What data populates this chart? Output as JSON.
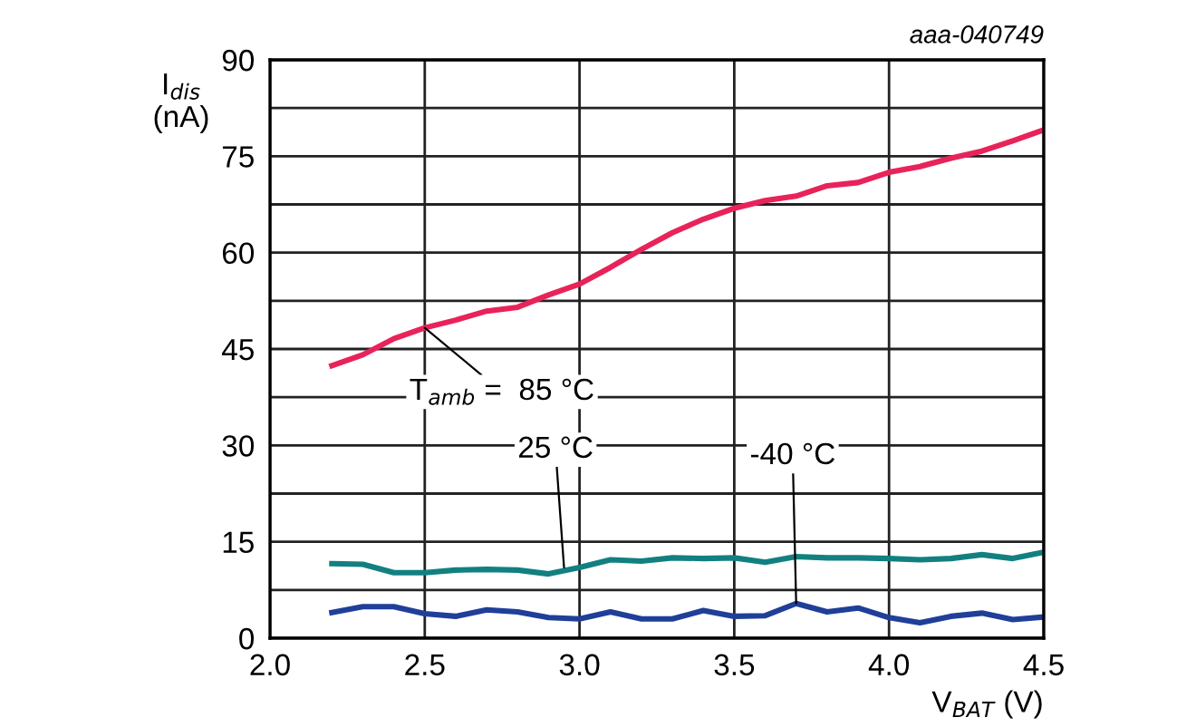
{
  "chart_data": {
    "type": "line",
    "xlabel": "V$_{BAT}$ (V)",
    "ylabel": "I$_{dis}$\n(nA)",
    "x": [
      2.2,
      2.3,
      2.4,
      2.5,
      2.6,
      2.7,
      2.8,
      2.9,
      3.0,
      3.1,
      3.2,
      3.3,
      3.4,
      3.5,
      3.6,
      3.7,
      3.8,
      3.9,
      4.0,
      4.1,
      4.2,
      4.3,
      4.4,
      4.5
    ],
    "series": [
      {
        "color": "#e8235a",
        "values": [
          42.4,
          44.1,
          46.6,
          48.3,
          49.5,
          50.9,
          51.5,
          53.4,
          55.1,
          57.7,
          60.5,
          63.1,
          65.2,
          66.9,
          68.1,
          68.8,
          70.4,
          70.9,
          72.5,
          73.4,
          74.7,
          75.8,
          77.4,
          79.1
        ]
      },
      {
        "color": "#128080",
        "values": [
          11.6,
          11.5,
          10.2,
          10.2,
          10.6,
          10.7,
          10.6,
          10.0,
          11.0,
          12.2,
          12.0,
          12.5,
          12.4,
          12.5,
          11.8,
          12.7,
          12.5,
          12.5,
          12.4,
          12.2,
          12.4,
          13.0,
          12.4,
          13.4
        ]
      },
      {
        "color": "#1f3f99",
        "values": [
          4.0,
          4.9,
          4.9,
          3.8,
          3.4,
          4.4,
          4.1,
          3.2,
          3.0,
          4.1,
          3.0,
          3.0,
          4.3,
          3.4,
          3.5,
          5.4,
          4.1,
          4.7,
          3.2,
          2.4,
          3.4,
          3.9,
          2.9,
          3.3
        ]
      }
    ],
    "xlim": [
      2.0,
      4.5
    ],
    "ylim": [
      0,
      90
    ],
    "xticks": [
      {
        "value": 2.0,
        "label": "2.0"
      },
      {
        "value": 2.5,
        "label": "2.5"
      },
      {
        "value": 3.0,
        "label": "3.0"
      },
      {
        "value": 3.5,
        "label": "3.5"
      },
      {
        "value": 4.0,
        "label": "4.0"
      },
      {
        "value": 4.5,
        "label": "4.5"
      }
    ],
    "yticks": [
      0,
      {
        "value": 7.5,
        "label": null
      },
      15,
      {
        "value": 22.5,
        "label": null
      },
      30,
      {
        "value": 37.5,
        "label": null
      },
      45,
      {
        "value": 52.5,
        "label": null
      },
      60,
      {
        "value": 67.5,
        "label": null
      },
      75,
      {
        "value": 82.5,
        "label": null
      },
      90
    ],
    "grid": true,
    "marker": "none",
    "line_style": "solid",
    "legend": false,
    "annotations": [
      "aaa-040749",
      {
        "text": "T$_{amb}$ =  85 °C",
        "x": 2.5,
        "y": 48.3
      },
      {
        "text": "25 °C",
        "x": 2.95,
        "y": 11.0
      },
      {
        "text": "-40 °C",
        "x": 3.7,
        "y": 5.4
      }
    ]
  }
}
